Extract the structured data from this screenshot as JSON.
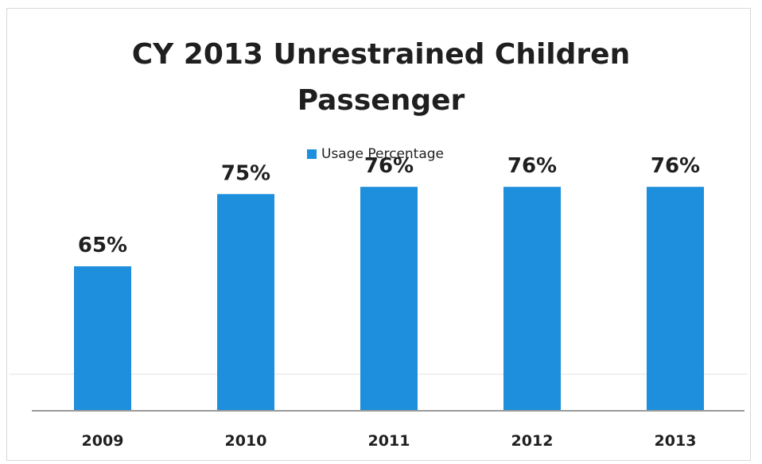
{
  "chart_data": {
    "type": "bar",
    "title": "CY 2013 Unrestrained Children Passenger",
    "title_lines": [
      "CY 2013 Unrestrained Children",
      "Passenger"
    ],
    "categories": [
      "2009",
      "2010",
      "2011",
      "2012",
      "2013"
    ],
    "series": [
      {
        "name": "Usage Percentage",
        "values": [
          65,
          75,
          76,
          76,
          76
        ],
        "labels": [
          "65%",
          "75%",
          "76%",
          "76%",
          "76%"
        ],
        "color": "#1e8fdc"
      }
    ],
    "xlabel": "",
    "ylabel": "",
    "ylim": [
      45,
      100
    ],
    "grid": false,
    "legend_position": "top-center"
  }
}
